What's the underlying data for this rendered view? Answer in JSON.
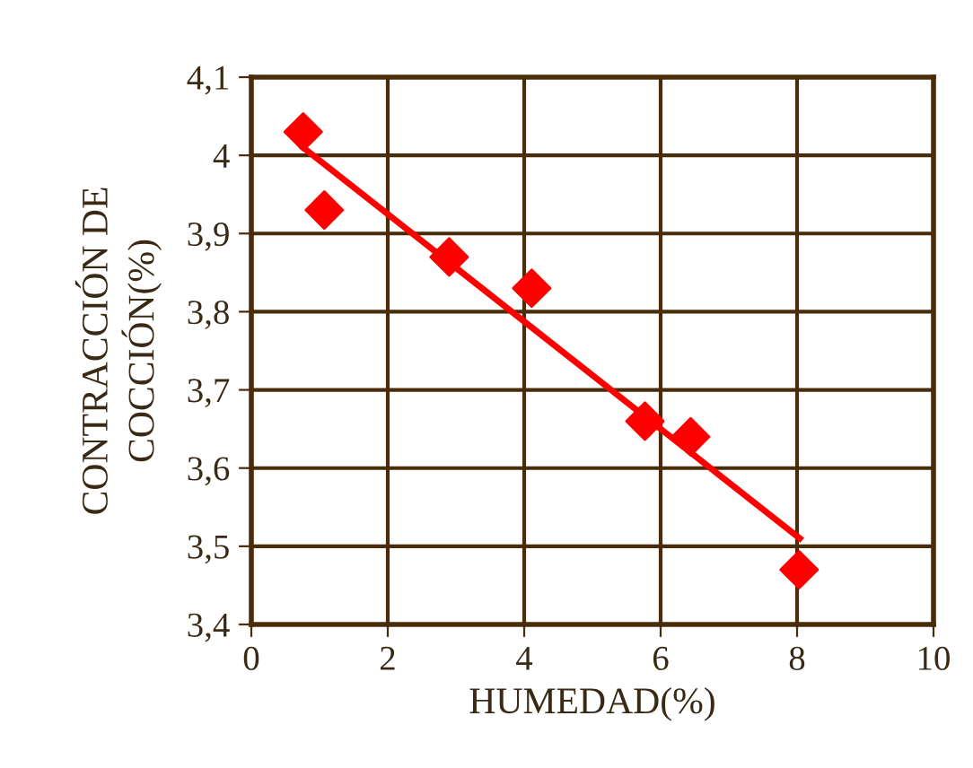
{
  "chart_data": {
    "type": "scatter",
    "xlabel": "HUMEDAD(%)",
    "ylabel": "CONTRACCIÓN DE\nCOCCIÓN(%)",
    "series": [
      {
        "color": "#ff0000",
        "marker": "diamond",
        "x": [
          0.76,
          1.07,
          2.9,
          4.11,
          5.77,
          6.44,
          8.03
        ],
        "values": [
          4.03,
          3.93,
          3.87,
          3.83,
          3.66,
          3.64,
          3.47
        ]
      },
      {
        "type": "line",
        "color": "#ff0000",
        "marker": "none",
        "line_style": "solid",
        "x": [
          0.76,
          8.04
        ],
        "values": [
          4.01,
          3.51
        ]
      }
    ],
    "xlim": [
      0,
      10
    ],
    "xticks": [
      0,
      2,
      4,
      6,
      8,
      10
    ],
    "ylim": [
      3.4,
      4.1
    ],
    "yticks": [
      {
        "value": 3.4,
        "label": "3,4"
      },
      {
        "value": 3.5,
        "label": "3,5"
      },
      {
        "value": 3.6,
        "label": "3,6"
      },
      {
        "value": 3.7,
        "label": "3,7"
      },
      {
        "value": 3.8,
        "label": "3,8"
      },
      {
        "value": 3.9,
        "label": "3,9"
      },
      {
        "value": 4,
        "label": "4"
      },
      {
        "value": 4.1,
        "label": "4,1"
      }
    ],
    "grid": true,
    "legend": false
  }
}
